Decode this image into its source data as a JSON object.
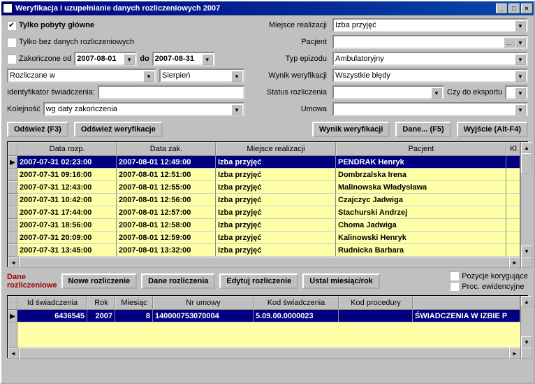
{
  "window": {
    "title": "Weryfikacja i uzupełnianie danych rozliczeniowych 2007"
  },
  "filters": {
    "only_main_stays": {
      "label": "Tylko pobyty główne",
      "checked": true
    },
    "only_without_billing": {
      "label": "Tylko bez danych rozliczeniowych",
      "checked": false
    },
    "finished_from": {
      "label": "Zakończone od",
      "checked": false,
      "value": "2007-08-01"
    },
    "to_label": "do",
    "finished_to": "2007-08-31",
    "billed_in": {
      "label": "Rozliczane w",
      "value": ""
    },
    "month": "Sierpień",
    "service_id_label": "Identyfikator świadczenia:",
    "service_id_value": "",
    "order_label": "Kolejność",
    "order_value": "wg daty zakończenia",
    "place_label": "Miejsce realizacji",
    "place_value": "Izba przyjęć",
    "patient_label": "Pacjent",
    "patient_value": "",
    "episode_type_label": "Typ epizodu",
    "episode_type_value": "Ambulatoryjny",
    "verify_result_label": "Wynik weryfikacji",
    "verify_result_value": "Wszystkie błędy",
    "billing_status_label": "Status rozliczenia",
    "billing_status_value": "",
    "export_label": "Czy do eksportu",
    "export_value": "",
    "contract_label": "Umowa",
    "contract_value": ""
  },
  "buttons": {
    "refresh": "Odśwież (F3)",
    "refresh_verify": "Odśwież weryfikacje",
    "verify_result": "Wynik weryfikacji",
    "data": "Dane... (F5)",
    "exit": "Wyjście (Alt-F4)",
    "new_billing": "Nowe rozliczenie",
    "billing_data": "Dane rozliczenia",
    "edit_billing": "Edytuj rozliczenie",
    "set_month": "Ustal miesiąc/rok"
  },
  "grid1": {
    "headers": [
      "",
      "Data rozp.",
      "Data zak.",
      "Miejsce realizacji",
      "Pacjent",
      "Kl"
    ],
    "widths": [
      14,
      142,
      142,
      172,
      244,
      20
    ],
    "rows": [
      {
        "sel": true,
        "start": "2007-07-31 02:23:00",
        "end": "2007-08-01 12:49:00",
        "place": "Izba przyjęć",
        "patient": "PENDRAK Henryk"
      },
      {
        "sel": false,
        "start": "2007-07-31 09:16:00",
        "end": "2007-08-01 12:51:00",
        "place": "Izba przyjęć",
        "patient": "Dombrzalska Irena"
      },
      {
        "sel": false,
        "start": "2007-07-31 12:43:00",
        "end": "2007-08-01 12:55:00",
        "place": "Izba przyjęć",
        "patient": "Malinowska Władysława"
      },
      {
        "sel": false,
        "start": "2007-07-31 10:42:00",
        "end": "2007-08-01 12:56:00",
        "place": "Izba przyjęć",
        "patient": "Czajczyc Jadwiga"
      },
      {
        "sel": false,
        "start": "2007-07-31 17:44:00",
        "end": "2007-08-01 12:57:00",
        "place": "Izba przyjęć",
        "patient": "Stachurski Andrzej"
      },
      {
        "sel": false,
        "start": "2007-07-31 18:56:00",
        "end": "2007-08-01 12:58:00",
        "place": "Izba przyjęć",
        "patient": "Choma Jadwiga"
      },
      {
        "sel": false,
        "start": "2007-07-31 20:09:00",
        "end": "2007-08-01 12:59:00",
        "place": "Izba przyjęć",
        "patient": "Kalinowski Henryk"
      },
      {
        "sel": false,
        "start": "2007-07-31 13:45:00",
        "end": "2007-08-01 13:32:00",
        "place": "Izba przyjęć",
        "patient": "Rudnicka Barbara"
      }
    ]
  },
  "mid": {
    "label_line1": "Dane",
    "label_line2": "rozliczeniowe",
    "correcting_items": {
      "label": "Pozycje korygujące",
      "checked": false
    },
    "record_proc": {
      "label": "Proc. ewidencyjne",
      "checked": false
    }
  },
  "grid2": {
    "headers": [
      "",
      "Id świadczenia",
      "Rok",
      "Miesiąc",
      "Nr umowy",
      "Kod świadczenia",
      "Kod procedury",
      ""
    ],
    "widths": [
      14,
      100,
      40,
      54,
      144,
      122,
      106,
      154
    ],
    "row": {
      "id": "6436545",
      "year": "2007",
      "month": "8",
      "contract": "140000753070004",
      "service_code": "5.09.00.0000023",
      "proc_code": "",
      "desc": "ŚWIADCZENIA W IZBIE P"
    }
  },
  "colors": {
    "row_bg": "#ffffa8",
    "sel_bg": "#000080"
  }
}
